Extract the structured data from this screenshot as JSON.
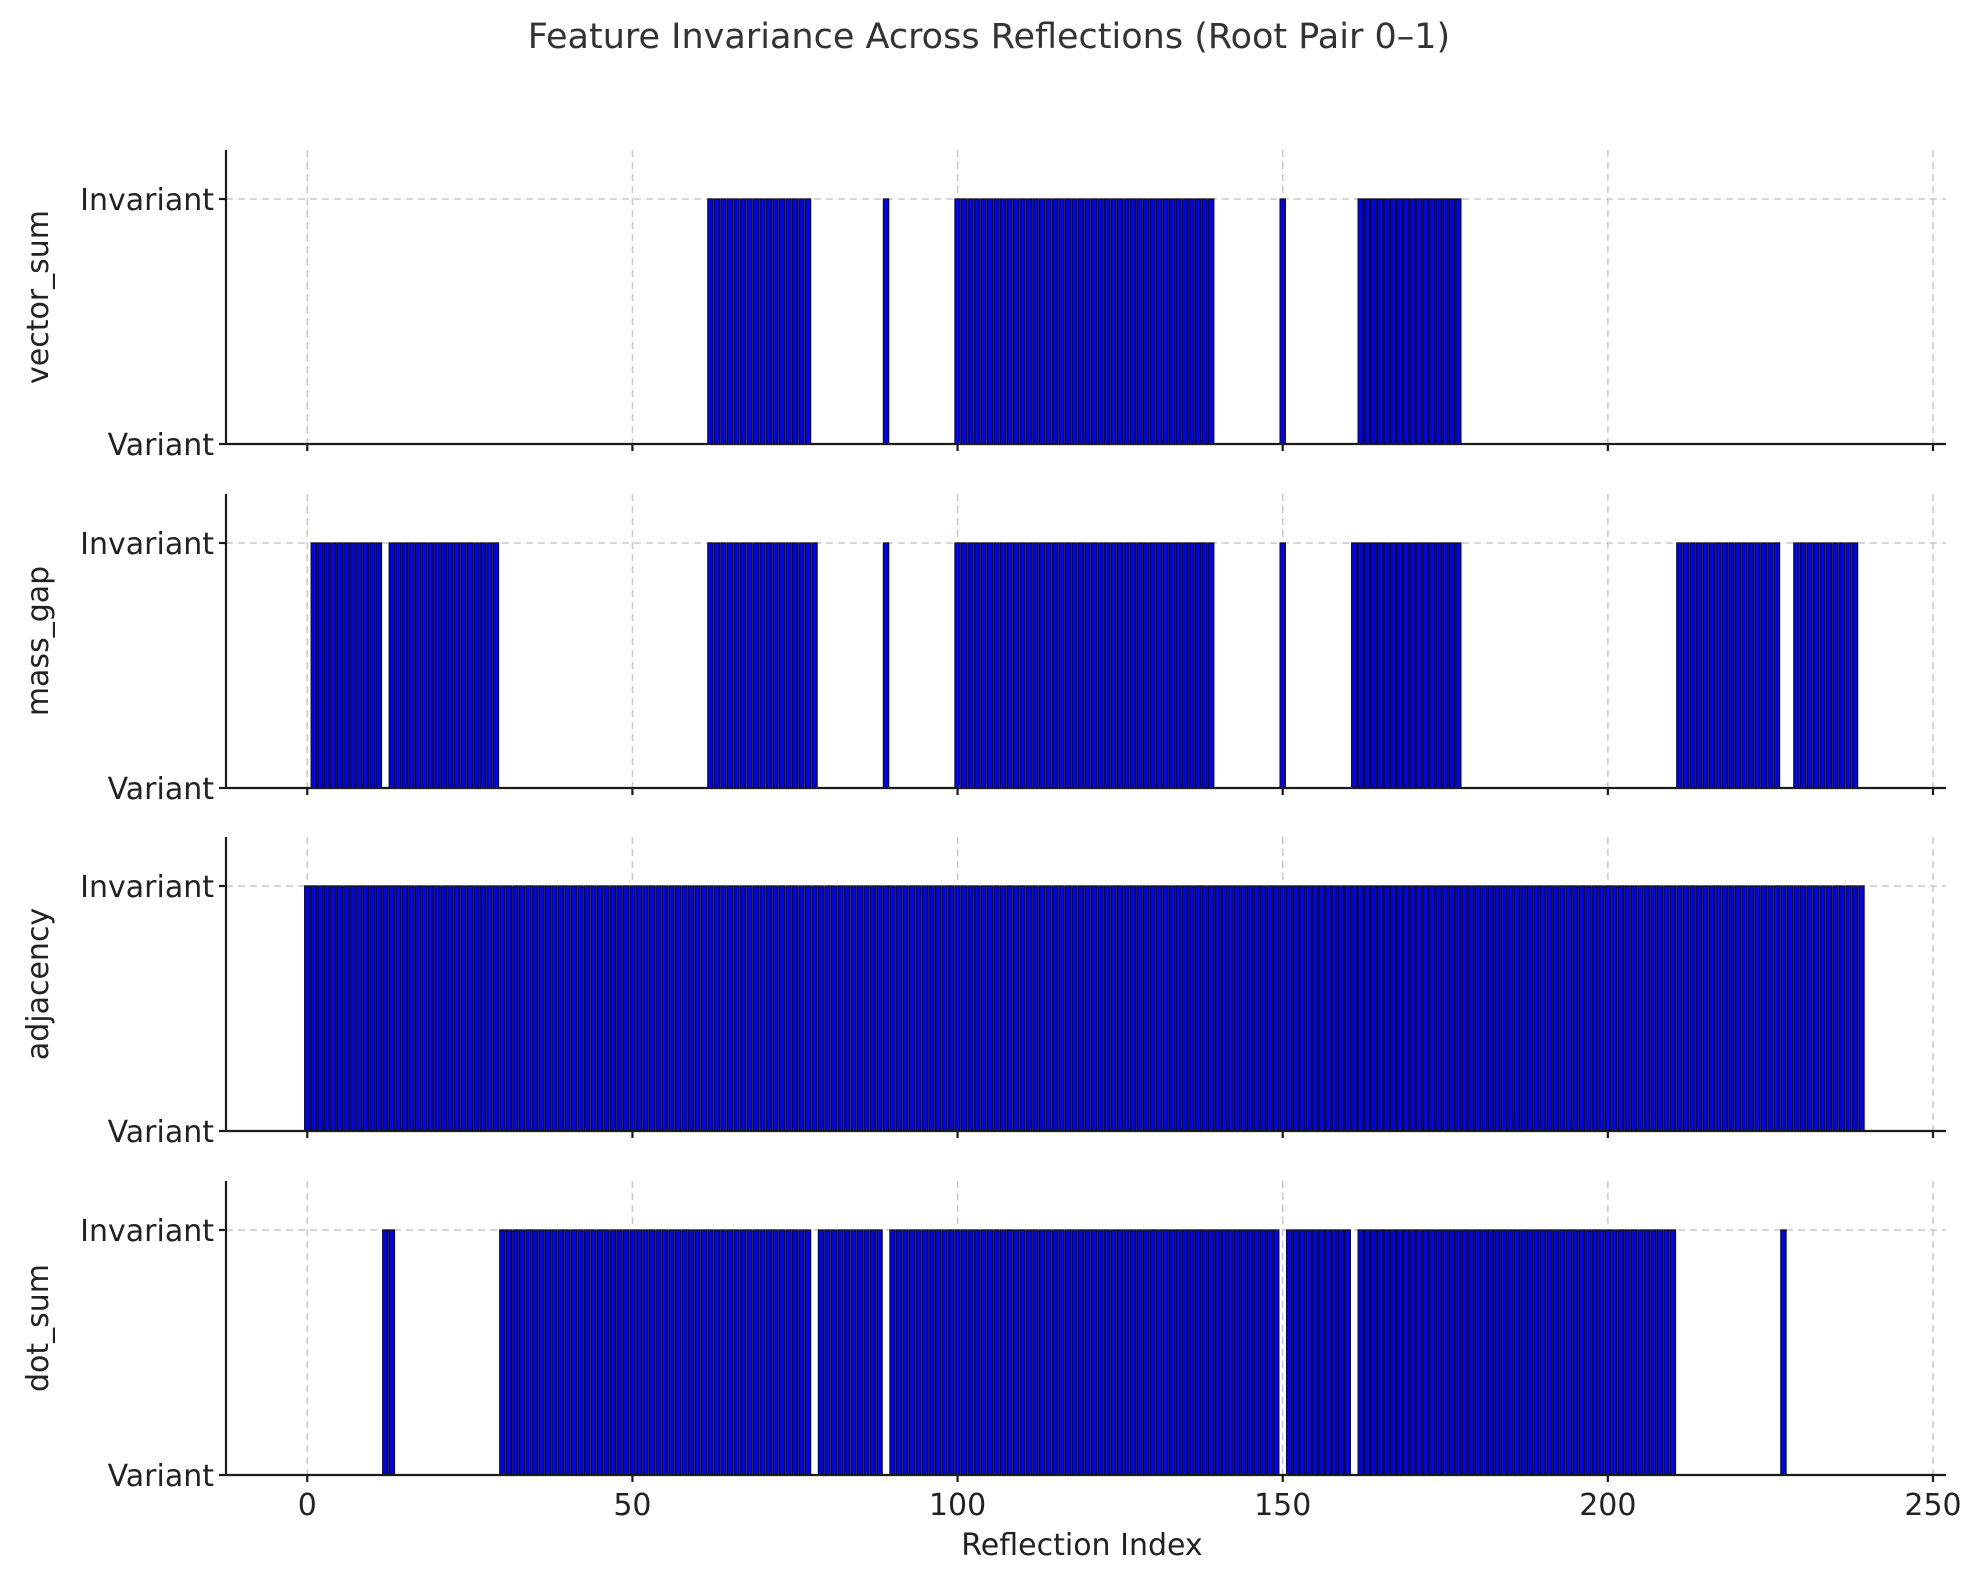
{
  "chart_data": {
    "type": "bar",
    "title": "Feature Invariance Across Reflections (Root Pair 0–1)",
    "xlabel": "Reflection Index",
    "xlim": [
      -12.5,
      252
    ],
    "xticks": [
      0,
      50,
      100,
      150,
      200,
      250
    ],
    "ytick_labels": [
      "Variant",
      "Invariant"
    ],
    "ylim": [
      0,
      1.2
    ],
    "grid": true,
    "bar_color": "#0000ff",
    "edge_color": "#111111",
    "encoding": "series values list the inclusive ranges of reflection indices that are Invariant (1); every other index is Variant (0)",
    "series": [
      {
        "name": "vector_sum",
        "invariant_ranges": [
          [
            62,
            77
          ],
          [
            89,
            89
          ],
          [
            100,
            139
          ],
          [
            150,
            150
          ],
          [
            162,
            177
          ]
        ]
      },
      {
        "name": "mass_gap",
        "invariant_ranges": [
          [
            1,
            11
          ],
          [
            13,
            29
          ],
          [
            62,
            78
          ],
          [
            89,
            89
          ],
          [
            100,
            139
          ],
          [
            150,
            150
          ],
          [
            161,
            177
          ],
          [
            211,
            226
          ],
          [
            229,
            238
          ]
        ]
      },
      {
        "name": "adjacency",
        "invariant_ranges": [
          [
            0,
            239
          ]
        ]
      },
      {
        "name": "dot_sum",
        "invariant_ranges": [
          [
            12,
            13
          ],
          [
            30,
            77
          ],
          [
            79,
            88
          ],
          [
            90,
            149
          ],
          [
            151,
            160
          ],
          [
            162,
            210
          ],
          [
            227,
            227
          ]
        ]
      }
    ]
  }
}
